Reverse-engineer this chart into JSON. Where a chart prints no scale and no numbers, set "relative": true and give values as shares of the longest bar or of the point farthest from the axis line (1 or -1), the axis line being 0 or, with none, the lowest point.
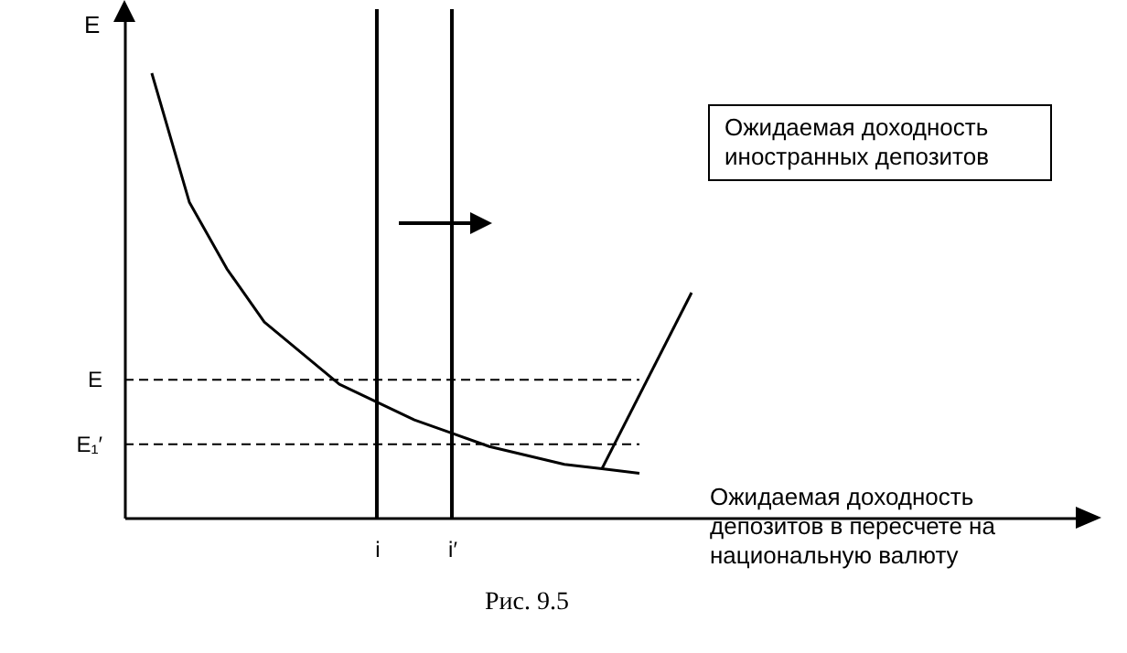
{
  "chart_data": {
    "type": "line",
    "relative": true,
    "xlabel": "Ожидаемая доходность депозитов в пересчете на национальную валюту",
    "ylabel": "E",
    "categories": [
      null,
      null,
      null,
      null,
      null,
      null,
      "i",
      null,
      "i′",
      null,
      null,
      null,
      null,
      null,
      null,
      null,
      null,
      null,
      null,
      null,
      null,
      null,
      null,
      null,
      null
    ],
    "series": [
      {
        "color": "#000000",
        "values": [
          1,
          0.71,
          0.56,
          0.44,
          0.37,
          0.3,
          0.26,
          0.22,
          0.19,
          0.16,
          0.14,
          0.12,
          0.11,
          0.1,
          null,
          null,
          null,
          null,
          null,
          null,
          null,
          null,
          null,
          null,
          null
        ]
      }
    ],
    "ref_lines": [
      {
        "axis": "y",
        "value": 0.31,
        "label": "E",
        "line_style": "dashed",
        "color": "#000000"
      },
      {
        "axis": "y",
        "value": 0.165,
        "label": "E₁′",
        "line_style": "dashed",
        "color": "#000000"
      },
      {
        "axis": "x",
        "value": "i",
        "line_style": "solid",
        "color": "#000000"
      },
      {
        "axis": "x",
        "value": "i′",
        "line_style": "solid",
        "color": "#000000"
      }
    ],
    "annotations": [
      "Ожидаемая доходность иностранных депозитов",
      "Рис. 9.5"
    ]
  }
}
